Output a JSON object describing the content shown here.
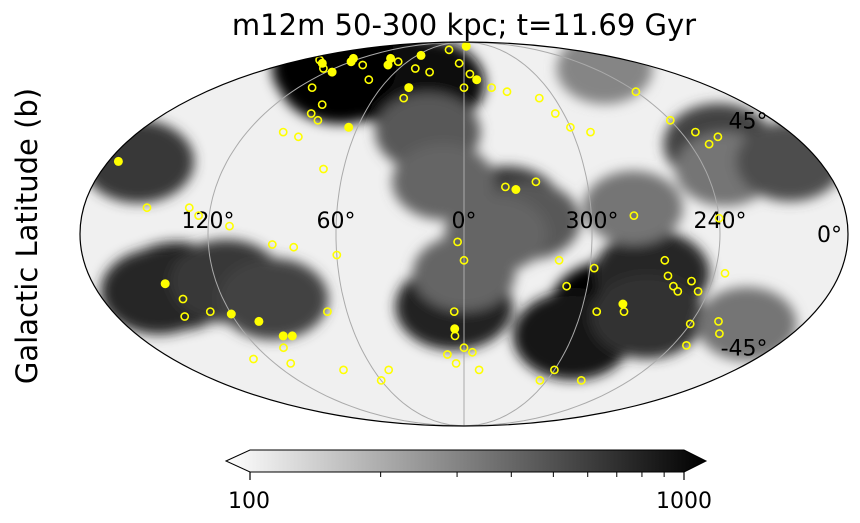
{
  "chart_data": {
    "type": "heatmap",
    "projection": "mollweide",
    "title": "m12m 50-300 kpc; t=11.69 Gyr",
    "ylabel": "Galactic Latitude (b)",
    "xlabel": "",
    "lon_ticks": [
      {
        "value": 120,
        "label": "120°"
      },
      {
        "value": 60,
        "label": "60°"
      },
      {
        "value": 0,
        "label": "0°"
      },
      {
        "value": 300,
        "label": "300°"
      },
      {
        "value": 240,
        "label": "240°"
      }
    ],
    "lat_ticks": [
      {
        "value": 45,
        "label": "45°"
      },
      {
        "value": 0,
        "label": "0°"
      },
      {
        "value": -45,
        "label": "-45°"
      }
    ],
    "grid": true,
    "colorbar": {
      "scale": "log",
      "range": [
        100,
        1000
      ],
      "tick_labels": [
        "100",
        "1000"
      ],
      "extend": "both",
      "colormap": "white-to-black",
      "position": "bottom"
    },
    "density_regions": [
      {
        "l": 100,
        "b": 65,
        "value": 1000
      },
      {
        "l": 60,
        "b": 65,
        "value": 1000
      },
      {
        "l": 30,
        "b": 62,
        "value": 900
      },
      {
        "l": 120,
        "b": 70,
        "value": 1000
      },
      {
        "l": 140,
        "b": -20,
        "value": 800
      },
      {
        "l": 150,
        "b": -22,
        "value": 700
      },
      {
        "l": 115,
        "b": -18,
        "value": 600
      },
      {
        "l": 95,
        "b": -25,
        "value": 550
      },
      {
        "l": 5,
        "b": -28,
        "value": 750
      },
      {
        "l": 0,
        "b": -15,
        "value": 400
      },
      {
        "l": 285,
        "b": -28,
        "value": 1000
      },
      {
        "l": 300,
        "b": -40,
        "value": 800
      },
      {
        "l": 270,
        "b": -15,
        "value": 700
      },
      {
        "l": 265,
        "b": -32,
        "value": 650
      },
      {
        "l": 340,
        "b": 10,
        "value": 600
      },
      {
        "l": 330,
        "b": 5,
        "value": 450
      },
      {
        "l": 345,
        "b": 0,
        "value": 400
      },
      {
        "l": 280,
        "b": 10,
        "value": 350
      },
      {
        "l": 225,
        "b": 35,
        "value": 550
      },
      {
        "l": 230,
        "b": 25,
        "value": 350
      },
      {
        "l": 195,
        "b": 28,
        "value": 500
      },
      {
        "l": 165,
        "b": 28,
        "value": 600
      },
      {
        "l": 20,
        "b": 40,
        "value": 450
      },
      {
        "l": 10,
        "b": 20,
        "value": 400
      },
      {
        "l": 210,
        "b": -35,
        "value": 350
      },
      {
        "l": 230,
        "b": 70,
        "value": 300
      }
    ],
    "series": [
      {
        "marker": "open-circle",
        "points": [
          [
            25,
            82
          ],
          [
            160,
            75
          ],
          [
            130,
            70
          ],
          [
            100,
            72
          ],
          [
            70,
            74
          ],
          [
            75,
            64
          ],
          [
            45,
            70
          ],
          [
            30,
            68
          ],
          [
            40,
            55
          ],
          [
            5,
            73
          ],
          [
            355,
            67
          ],
          [
            0,
            60
          ],
          [
            340,
            60
          ],
          [
            330,
            58
          ],
          [
            310,
            55
          ],
          [
            305,
            48
          ],
          [
            300,
            42
          ],
          [
            290,
            40
          ],
          [
            240,
            58
          ],
          [
            240,
            45
          ],
          [
            232,
            40
          ],
          [
            230,
            35
          ],
          [
            222,
            38
          ],
          [
            110,
            60
          ],
          [
            90,
            52
          ],
          [
            92,
            48
          ],
          [
            85,
            45
          ],
          [
            100,
            40
          ],
          [
            90,
            38
          ],
          [
            70,
            25
          ],
          [
            150,
            10
          ],
          [
            130,
            10
          ],
          [
            125,
            7
          ],
          [
            110,
            3
          ],
          [
            90,
            -4
          ],
          [
            60,
            -8
          ],
          [
            70,
            -30
          ],
          [
            80,
            -5
          ],
          [
            140,
            -25
          ],
          [
            145,
            -32
          ],
          [
            130,
            -50
          ],
          [
            110,
            -52
          ],
          [
            105,
            -45
          ],
          [
            80,
            -55
          ],
          [
            60,
            -60
          ],
          [
            50,
            -55
          ],
          [
            3,
            -3
          ],
          [
            0,
            -10
          ],
          [
            5,
            -30
          ],
          [
            5,
            -40
          ],
          [
            0,
            -45
          ],
          [
            355,
            -47
          ],
          [
            10,
            -48
          ],
          [
            5,
            -52
          ],
          [
            350,
            -55
          ],
          [
            340,
            18
          ],
          [
            325,
            20
          ],
          [
            310,
            -20
          ],
          [
            315,
            -10
          ],
          [
            298,
            -13
          ],
          [
            292,
            -30
          ],
          [
            300,
            -55
          ],
          [
            305,
            -60
          ],
          [
            275,
            -60
          ],
          [
            278,
            -30
          ],
          [
            280,
            7
          ],
          [
            265,
            -10
          ],
          [
            262,
            -16
          ],
          [
            258,
            -20
          ],
          [
            255,
            -22
          ],
          [
            245,
            -22
          ],
          [
            250,
            -18
          ],
          [
            240,
            -35
          ],
          [
            235,
            -15
          ],
          [
            232,
            -44
          ],
          [
            240,
            6
          ],
          [
            226,
            -34
          ],
          [
            220,
            -39
          ],
          [
            130,
            -30
          ]
        ]
      },
      {
        "marker": "filled-circle",
        "points": [
          [
            145,
            73
          ],
          [
            128,
            76
          ],
          [
            120,
            74
          ],
          [
            115,
            68
          ],
          [
            85,
            76
          ],
          [
            75,
            72
          ],
          [
            55,
            78
          ],
          [
            355,
            85
          ],
          [
            40,
            60
          ],
          [
            350,
            64
          ],
          [
            65,
            42
          ],
          [
            175,
            28
          ],
          [
            335,
            17
          ],
          [
            145,
            -19
          ],
          [
            120,
            -31
          ],
          [
            108,
            -34
          ],
          [
            100,
            -40
          ],
          [
            95,
            -40
          ],
          [
            5,
            -37
          ],
          [
            280,
            -27
          ]
        ]
      }
    ]
  }
}
